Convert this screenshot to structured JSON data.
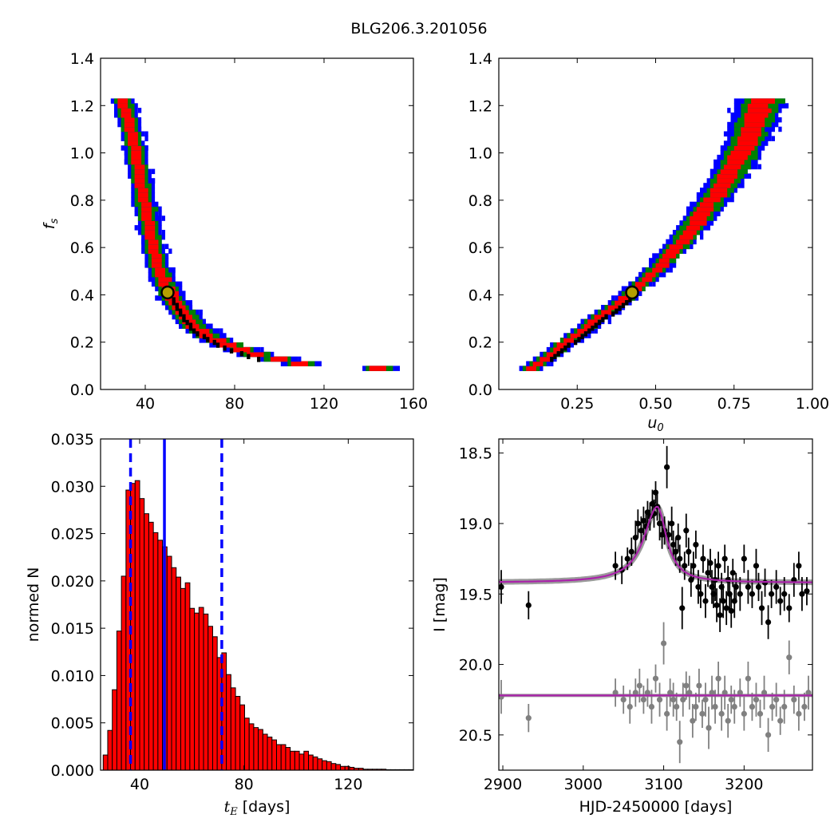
{
  "figure": {
    "title": "BLG206.3.201056"
  },
  "chart_data": [
    {
      "id": "fs-vs-tE",
      "type": "heatmap",
      "xlabel": "",
      "ylabel": "f_s",
      "xlim": [
        20,
        160
      ],
      "ylim": [
        0.0,
        1.4
      ],
      "xticks": [
        40,
        80,
        120,
        160
      ],
      "yticks": [
        0.0,
        0.2,
        0.4,
        0.6,
        0.8,
        1.0,
        1.2,
        1.4
      ],
      "grid": false,
      "colors": {
        "outer": "#0000ff",
        "middle": "#008000",
        "inner": "#ff0000",
        "mode": "#000000"
      },
      "best_fit": {
        "x": 50,
        "y": 0.41
      },
      "ridge": [
        [
          30,
          1.23
        ],
        [
          34,
          1.1
        ],
        [
          36,
          1.0
        ],
        [
          38,
          0.9
        ],
        [
          40,
          0.8
        ],
        [
          42,
          0.7
        ],
        [
          44,
          0.6
        ],
        [
          46,
          0.52
        ],
        [
          50,
          0.42
        ],
        [
          56,
          0.33
        ],
        [
          62,
          0.26
        ],
        [
          70,
          0.21
        ],
        [
          80,
          0.17
        ],
        [
          90,
          0.14
        ],
        [
          100,
          0.12
        ],
        [
          110,
          0.1
        ],
        [
          125,
          0.09
        ],
        [
          145,
          0.08
        ]
      ],
      "fs_range": [
        0.08,
        1.23
      ]
    },
    {
      "id": "fs-vs-u0",
      "type": "heatmap",
      "xlabel": "u_0",
      "ylabel": "",
      "xlim": [
        0.0,
        1.0
      ],
      "ylim": [
        0.0,
        1.4
      ],
      "xticks": [
        0.25,
        0.5,
        0.75,
        1.0
      ],
      "xtick_labels": [
        "0.25",
        "0.50",
        "0.75",
        "1.00"
      ],
      "yticks": [
        0.0,
        0.2,
        0.4,
        0.6,
        0.8,
        1.0,
        1.2,
        1.4
      ],
      "grid": false,
      "colors": {
        "outer": "#0000ff",
        "middle": "#008000",
        "inner": "#ff0000",
        "mode": "#000000"
      },
      "best_fit": {
        "x": 0.425,
        "y": 0.41
      },
      "ridge": [
        [
          0.11,
          0.08
        ],
        [
          0.2,
          0.17
        ],
        [
          0.3,
          0.27
        ],
        [
          0.4,
          0.37
        ],
        [
          0.5,
          0.49
        ],
        [
          0.6,
          0.64
        ],
        [
          0.7,
          0.82
        ],
        [
          0.78,
          1.0
        ],
        [
          0.85,
          1.23
        ]
      ],
      "fs_range": [
        0.08,
        1.23
      ]
    },
    {
      "id": "tE-histogram",
      "type": "bar",
      "xlabel": "[days]",
      "xlabel_var": "t_E",
      "ylabel": "normed N",
      "xlim": [
        25,
        145
      ],
      "ylim": [
        0.0,
        0.035
      ],
      "xticks": [
        40,
        80,
        120
      ],
      "yticks": [
        0.0,
        0.005,
        0.01,
        0.015,
        0.02,
        0.025,
        0.03,
        0.035
      ],
      "ytick_labels": [
        "0.000",
        "0.005",
        "0.010",
        "0.015",
        "0.020",
        "0.025",
        "0.030",
        "0.035"
      ],
      "bin_width": 1.75,
      "bin_start": 26,
      "values": [
        0.0016,
        0.0042,
        0.0085,
        0.0147,
        0.0205,
        0.0296,
        0.0303,
        0.0306,
        0.0287,
        0.0271,
        0.0262,
        0.0251,
        0.0243,
        0.0236,
        0.0226,
        0.0214,
        0.0204,
        0.0192,
        0.0198,
        0.0171,
        0.0166,
        0.0172,
        0.0165,
        0.0152,
        0.0141,
        0.0119,
        0.0124,
        0.0101,
        0.0087,
        0.0078,
        0.0069,
        0.0055,
        0.0049,
        0.0045,
        0.0043,
        0.0038,
        0.0035,
        0.0032,
        0.0027,
        0.0027,
        0.0024,
        0.002,
        0.002,
        0.0017,
        0.002,
        0.0016,
        0.0014,
        0.0012,
        0.001,
        0.0009,
        0.0007,
        0.0006,
        0.0004,
        0.0004,
        0.0003,
        0.0002,
        0.0002,
        0.0001,
        0.0001,
        0.0001,
        0.0001,
        0.0001,
        5e-05,
        5e-05,
        5e-05,
        5e-05,
        5e-05,
        5e-05,
        5e-05
      ],
      "bar_color": "#ff0000",
      "median": 49.5,
      "lower": 36.5,
      "upper": 71.5,
      "line_color": "#0000ff"
    },
    {
      "id": "light-curve",
      "type": "scatter",
      "xlabel": "HJD-2450000 [days]",
      "ylabel": "I [mag]",
      "xlim": [
        2895,
        3285
      ],
      "ylim": [
        20.75,
        18.4
      ],
      "y_inverted": true,
      "xticks": [
        2900,
        3000,
        3100,
        3200
      ],
      "yticks": [
        18.5,
        19.0,
        19.5,
        20.0,
        20.5
      ],
      "grid": false,
      "model": {
        "baseline": 19.42,
        "peak_mag": 18.88,
        "t0": 3092,
        "tE_rise": 20,
        "tE_fall": 14,
        "residual_baseline": 20.22
      },
      "series": [
        {
          "name": "",
          "color": "#000000",
          "points": [
            [
              2898,
              19.45,
              0.12
            ],
            [
              2932,
              19.58,
              0.1
            ],
            [
              3040,
              19.3,
              0.1
            ],
            [
              3048,
              19.33,
              0.1
            ],
            [
              3055,
              19.25,
              0.08
            ],
            [
              3060,
              19.2,
              0.1
            ],
            [
              3065,
              19.1,
              0.12
            ],
            [
              3068,
              19.0,
              0.1
            ],
            [
              3072,
              19.05,
              0.1
            ],
            [
              3075,
              18.98,
              0.1
            ],
            [
              3078,
              19.02,
              0.1
            ],
            [
              3080,
              18.92,
              0.08
            ],
            [
              3083,
              18.95,
              0.1
            ],
            [
              3086,
              18.86,
              0.1
            ],
            [
              3088,
              18.93,
              0.1
            ],
            [
              3090,
              18.78,
              0.08
            ],
            [
              3092,
              18.88,
              0.1
            ],
            [
              3095,
              19.0,
              0.12
            ],
            [
              3098,
              19.08,
              0.1
            ],
            [
              3101,
              19.05,
              0.1
            ],
            [
              3104,
              18.6,
              0.15
            ],
            [
              3106,
              19.08,
              0.1
            ],
            [
              3110,
              19.0,
              0.12
            ],
            [
              3112,
              19.15,
              0.1
            ],
            [
              3115,
              19.2,
              0.1
            ],
            [
              3118,
              19.1,
              0.1
            ],
            [
              3120,
              19.25,
              0.1
            ],
            [
              3123,
              19.6,
              0.15
            ],
            [
              3126,
              19.3,
              0.1
            ],
            [
              3128,
              19.05,
              0.12
            ],
            [
              3131,
              19.2,
              0.1
            ],
            [
              3134,
              19.4,
              0.12
            ],
            [
              3137,
              19.3,
              0.1
            ],
            [
              3140,
              19.15,
              0.1
            ],
            [
              3143,
              19.45,
              0.12
            ],
            [
              3146,
              19.5,
              0.1
            ],
            [
              3149,
              19.25,
              0.1
            ],
            [
              3152,
              19.55,
              0.12
            ],
            [
              3155,
              19.35,
              0.1
            ],
            [
              3158,
              19.28,
              0.1
            ],
            [
              3160,
              19.45,
              0.12
            ],
            [
              3162,
              19.5,
              0.1
            ],
            [
              3164,
              19.4,
              0.15
            ],
            [
              3166,
              19.58,
              0.12
            ],
            [
              3168,
              19.3,
              0.1
            ],
            [
              3170,
              19.65,
              0.12
            ],
            [
              3172,
              19.45,
              0.1
            ],
            [
              3174,
              19.55,
              0.12
            ],
            [
              3176,
              19.25,
              0.1
            ],
            [
              3178,
              19.6,
              0.12
            ],
            [
              3180,
              19.4,
              0.1
            ],
            [
              3182,
              19.5,
              0.12
            ],
            [
              3184,
              19.62,
              0.12
            ],
            [
              3186,
              19.35,
              0.1
            ],
            [
              3188,
              19.55,
              0.12
            ],
            [
              3190,
              19.45,
              0.1
            ],
            [
              3195,
              19.5,
              0.12
            ],
            [
              3200,
              19.25,
              0.1
            ],
            [
              3205,
              19.45,
              0.12
            ],
            [
              3210,
              19.5,
              0.1
            ],
            [
              3215,
              19.3,
              0.12
            ],
            [
              3218,
              19.45,
              0.1
            ],
            [
              3222,
              19.6,
              0.12
            ],
            [
              3226,
              19.42,
              0.1
            ],
            [
              3230,
              19.7,
              0.12
            ],
            [
              3234,
              19.5,
              0.1
            ],
            [
              3240,
              19.45,
              0.12
            ],
            [
              3245,
              19.55,
              0.1
            ],
            [
              3250,
              19.5,
              0.12
            ],
            [
              3256,
              19.6,
              0.1
            ],
            [
              3262,
              19.4,
              0.12
            ],
            [
              3268,
              19.3,
              0.1
            ],
            [
              3272,
              19.5,
              0.12
            ],
            [
              3278,
              19.48,
              0.1
            ]
          ]
        },
        {
          "name": "",
          "color": "#808080",
          "points": [
            [
              2898,
              20.23,
              0.12
            ],
            [
              2932,
              20.38,
              0.1
            ],
            [
              3040,
              20.2,
              0.1
            ],
            [
              3050,
              20.25,
              0.1
            ],
            [
              3058,
              20.3,
              0.12
            ],
            [
              3065,
              20.2,
              0.1
            ],
            [
              3070,
              20.15,
              0.12
            ],
            [
              3075,
              20.25,
              0.1
            ],
            [
              3080,
              20.2,
              0.1
            ],
            [
              3085,
              20.3,
              0.12
            ],
            [
              3090,
              20.1,
              0.1
            ],
            [
              3095,
              20.25,
              0.12
            ],
            [
              3100,
              19.85,
              0.15
            ],
            [
              3104,
              20.35,
              0.12
            ],
            [
              3108,
              20.2,
              0.1
            ],
            [
              3112,
              20.25,
              0.12
            ],
            [
              3116,
              20.3,
              0.1
            ],
            [
              3120,
              20.55,
              0.15
            ],
            [
              3124,
              20.25,
              0.12
            ],
            [
              3128,
              20.15,
              0.1
            ],
            [
              3132,
              20.2,
              0.12
            ],
            [
              3136,
              20.4,
              0.12
            ],
            [
              3140,
              20.3,
              0.1
            ],
            [
              3144,
              20.15,
              0.12
            ],
            [
              3148,
              20.35,
              0.1
            ],
            [
              3152,
              20.25,
              0.12
            ],
            [
              3156,
              20.45,
              0.15
            ],
            [
              3160,
              20.2,
              0.12
            ],
            [
              3164,
              20.3,
              0.12
            ],
            [
              3168,
              20.1,
              0.12
            ],
            [
              3172,
              20.35,
              0.12
            ],
            [
              3176,
              20.2,
              0.12
            ],
            [
              3180,
              20.4,
              0.12
            ],
            [
              3184,
              20.25,
              0.1
            ],
            [
              3188,
              20.3,
              0.12
            ],
            [
              3195,
              20.2,
              0.1
            ],
            [
              3200,
              20.35,
              0.12
            ],
            [
              3205,
              20.1,
              0.12
            ],
            [
              3210,
              20.3,
              0.1
            ],
            [
              3215,
              20.25,
              0.12
            ],
            [
              3220,
              20.35,
              0.1
            ],
            [
              3225,
              20.2,
              0.12
            ],
            [
              3230,
              20.5,
              0.12
            ],
            [
              3235,
              20.3,
              0.1
            ],
            [
              3240,
              20.25,
              0.12
            ],
            [
              3245,
              20.4,
              0.1
            ],
            [
              3250,
              20.3,
              0.12
            ],
            [
              3256,
              19.95,
              0.12
            ],
            [
              3262,
              20.25,
              0.1
            ],
            [
              3268,
              20.35,
              0.12
            ],
            [
              3275,
              20.3,
              0.1
            ],
            [
              3280,
              20.2,
              0.12
            ]
          ]
        }
      ],
      "model_color": "#aa22aa",
      "model_band_color": "#909090"
    }
  ]
}
